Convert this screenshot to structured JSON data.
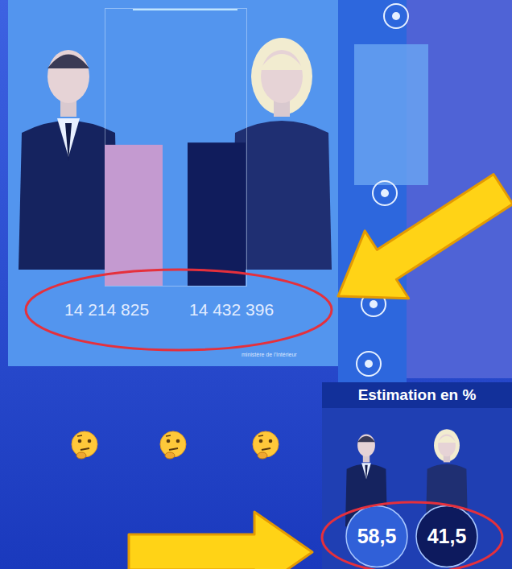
{
  "chart_data": [
    {
      "type": "bar",
      "categories": [
        null,
        null
      ],
      "values": [
        14214825,
        14432396
      ],
      "value_labels": [
        "14 214 825",
        "14 432 396"
      ],
      "colors": [
        "#c49ad0",
        "#101c5c"
      ],
      "ylim": [
        0,
        28000000
      ],
      "tick_labels": false,
      "data_labels": true,
      "annotations": [
        "ministère de l'Intérieur"
      ]
    },
    {
      "type": "dot",
      "title": "Estimation en %",
      "categories": [
        null,
        null
      ],
      "values": [
        58.5,
        41.5
      ],
      "value_labels": [
        "58,5",
        "41,5"
      ],
      "colors": [
        "#3060d8",
        "#0d1a5e"
      ],
      "tick_labels": false,
      "data_labels": true
    }
  ]
}
